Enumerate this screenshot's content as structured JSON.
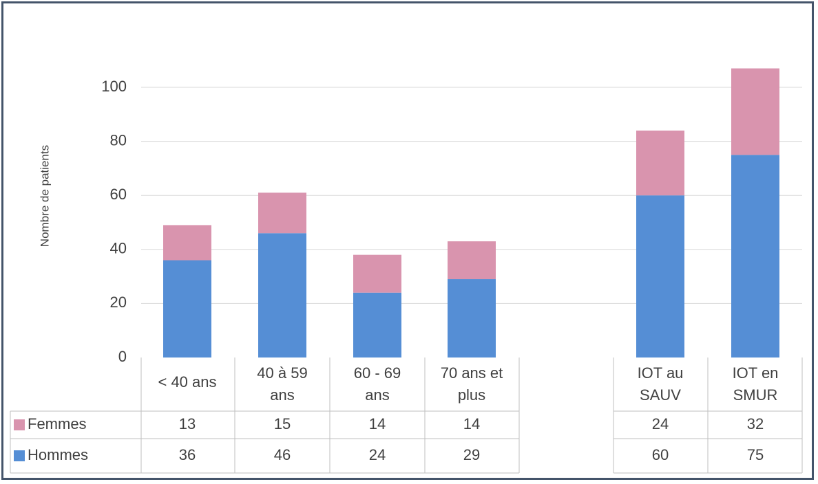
{
  "chart_data": {
    "type": "bar",
    "stacked": true,
    "ylabel": "Nombre de patients",
    "ylim": [
      0,
      110
    ],
    "yticks": [
      0,
      20,
      40,
      60,
      80,
      100
    ],
    "grid": true,
    "categories": [
      [
        "< 40 ans"
      ],
      [
        "40 à 59",
        "ans"
      ],
      [
        "60 - 69",
        "ans"
      ],
      [
        "70 ans et",
        "plus"
      ],
      [
        "IOT au",
        "SAUV"
      ],
      [
        "IOT en",
        "SMUR"
      ]
    ],
    "series": [
      {
        "name": "Hommes",
        "color": "#558ed5",
        "values": [
          36,
          46,
          24,
          29,
          60,
          75
        ]
      },
      {
        "name": "Femmes",
        "color": "#d994ae",
        "values": [
          13,
          15,
          14,
          14,
          24,
          32
        ]
      }
    ],
    "legend": "data-table"
  }
}
